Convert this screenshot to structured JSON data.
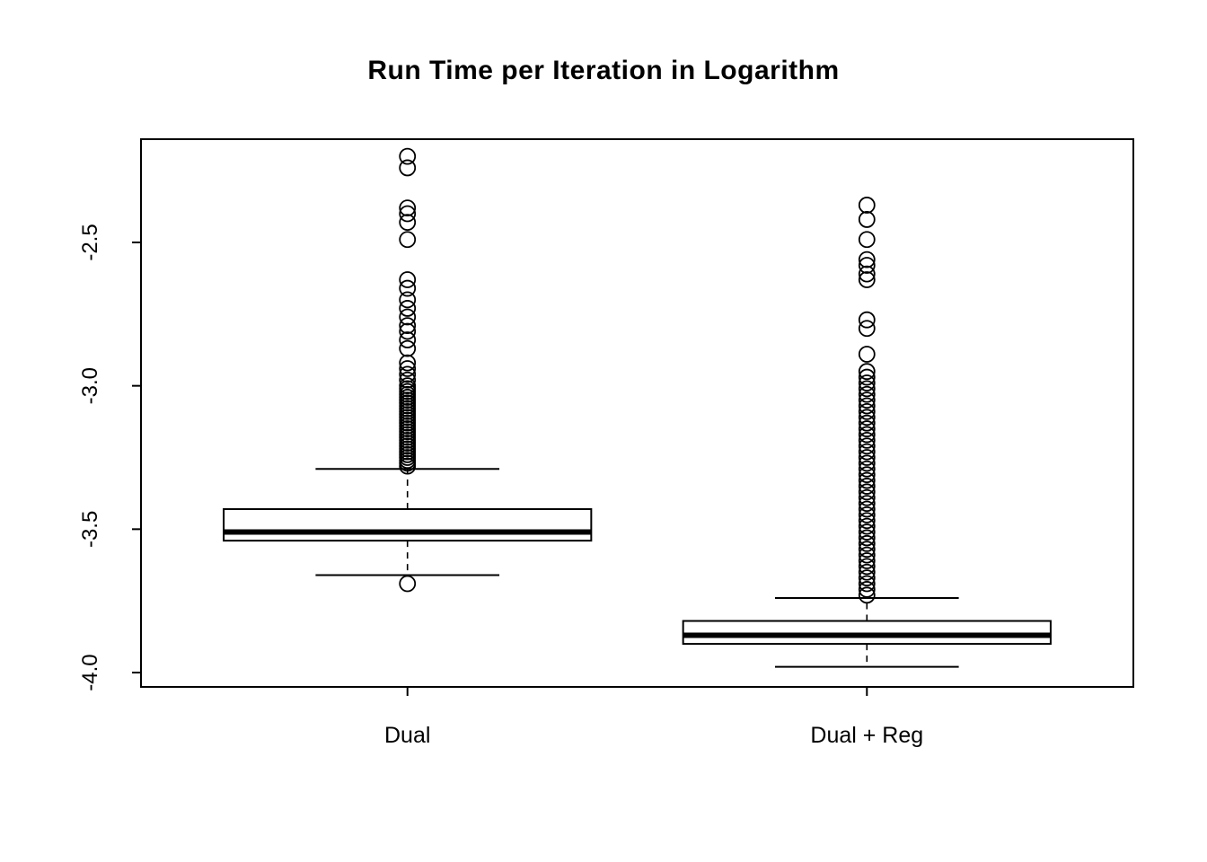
{
  "title": "Run Time per Iteration in Logarithm",
  "chart_data": {
    "type": "boxplot",
    "title": "Run Time per Iteration in Logarithm",
    "categories": [
      "Dual",
      "Dual + Reg"
    ],
    "xlabel": "",
    "ylabel": "",
    "ylim": [
      -4.05,
      -2.14
    ],
    "yticks": [
      -2.5,
      -3.0,
      -3.5,
      -4.0
    ],
    "ytick_labels": [
      "-2.5",
      "-3.0",
      "-3.5",
      "-4.0"
    ],
    "xlim": [
      0.42,
      2.58
    ],
    "positions": [
      1,
      2
    ],
    "box_width": 0.8,
    "cap_width": 0.4,
    "grid": false,
    "legend": "none",
    "colors": {
      "stroke": "#000000",
      "box_fill": "#ffffff",
      "background": "#ffffff"
    },
    "series": [
      {
        "name": "Dual",
        "stats": {
          "whisker_low": -3.66,
          "q1": -3.54,
          "median": -3.51,
          "q3": -3.43,
          "whisker_high": -3.29
        },
        "outliers": [
          -2.2,
          -2.24,
          -2.38,
          -2.4,
          -2.43,
          -2.49,
          -2.63,
          -2.66,
          -2.7,
          -2.73,
          -2.76,
          -2.79,
          -2.81,
          -2.84,
          -2.87,
          -2.92,
          -2.94,
          -2.96,
          -2.98,
          -3.0,
          -3.01,
          -3.02,
          -3.03,
          -3.04,
          -3.05,
          -3.06,
          -3.07,
          -3.08,
          -3.09,
          -3.1,
          -3.11,
          -3.12,
          -3.13,
          -3.14,
          -3.15,
          -3.16,
          -3.17,
          -3.18,
          -3.19,
          -3.2,
          -3.21,
          -3.22,
          -3.23,
          -3.24,
          -3.25,
          -3.26,
          -3.27,
          -3.28,
          -3.69
        ]
      },
      {
        "name": "Dual + Reg",
        "stats": {
          "whisker_low": -3.98,
          "q1": -3.9,
          "median": -3.87,
          "q3": -3.82,
          "whisker_high": -3.74
        },
        "outliers": [
          -2.37,
          -2.42,
          -2.49,
          -2.56,
          -2.58,
          -2.61,
          -2.63,
          -2.77,
          -2.8,
          -2.89,
          -2.95,
          -2.97,
          -2.99,
          -3.01,
          -3.03,
          -3.05,
          -3.07,
          -3.09,
          -3.11,
          -3.13,
          -3.15,
          -3.17,
          -3.19,
          -3.21,
          -3.23,
          -3.25,
          -3.27,
          -3.29,
          -3.31,
          -3.33,
          -3.35,
          -3.37,
          -3.39,
          -3.41,
          -3.43,
          -3.45,
          -3.47,
          -3.49,
          -3.51,
          -3.53,
          -3.55,
          -3.57,
          -3.59,
          -3.61,
          -3.63,
          -3.65,
          -3.67,
          -3.69,
          -3.71,
          -3.73
        ]
      }
    ]
  }
}
